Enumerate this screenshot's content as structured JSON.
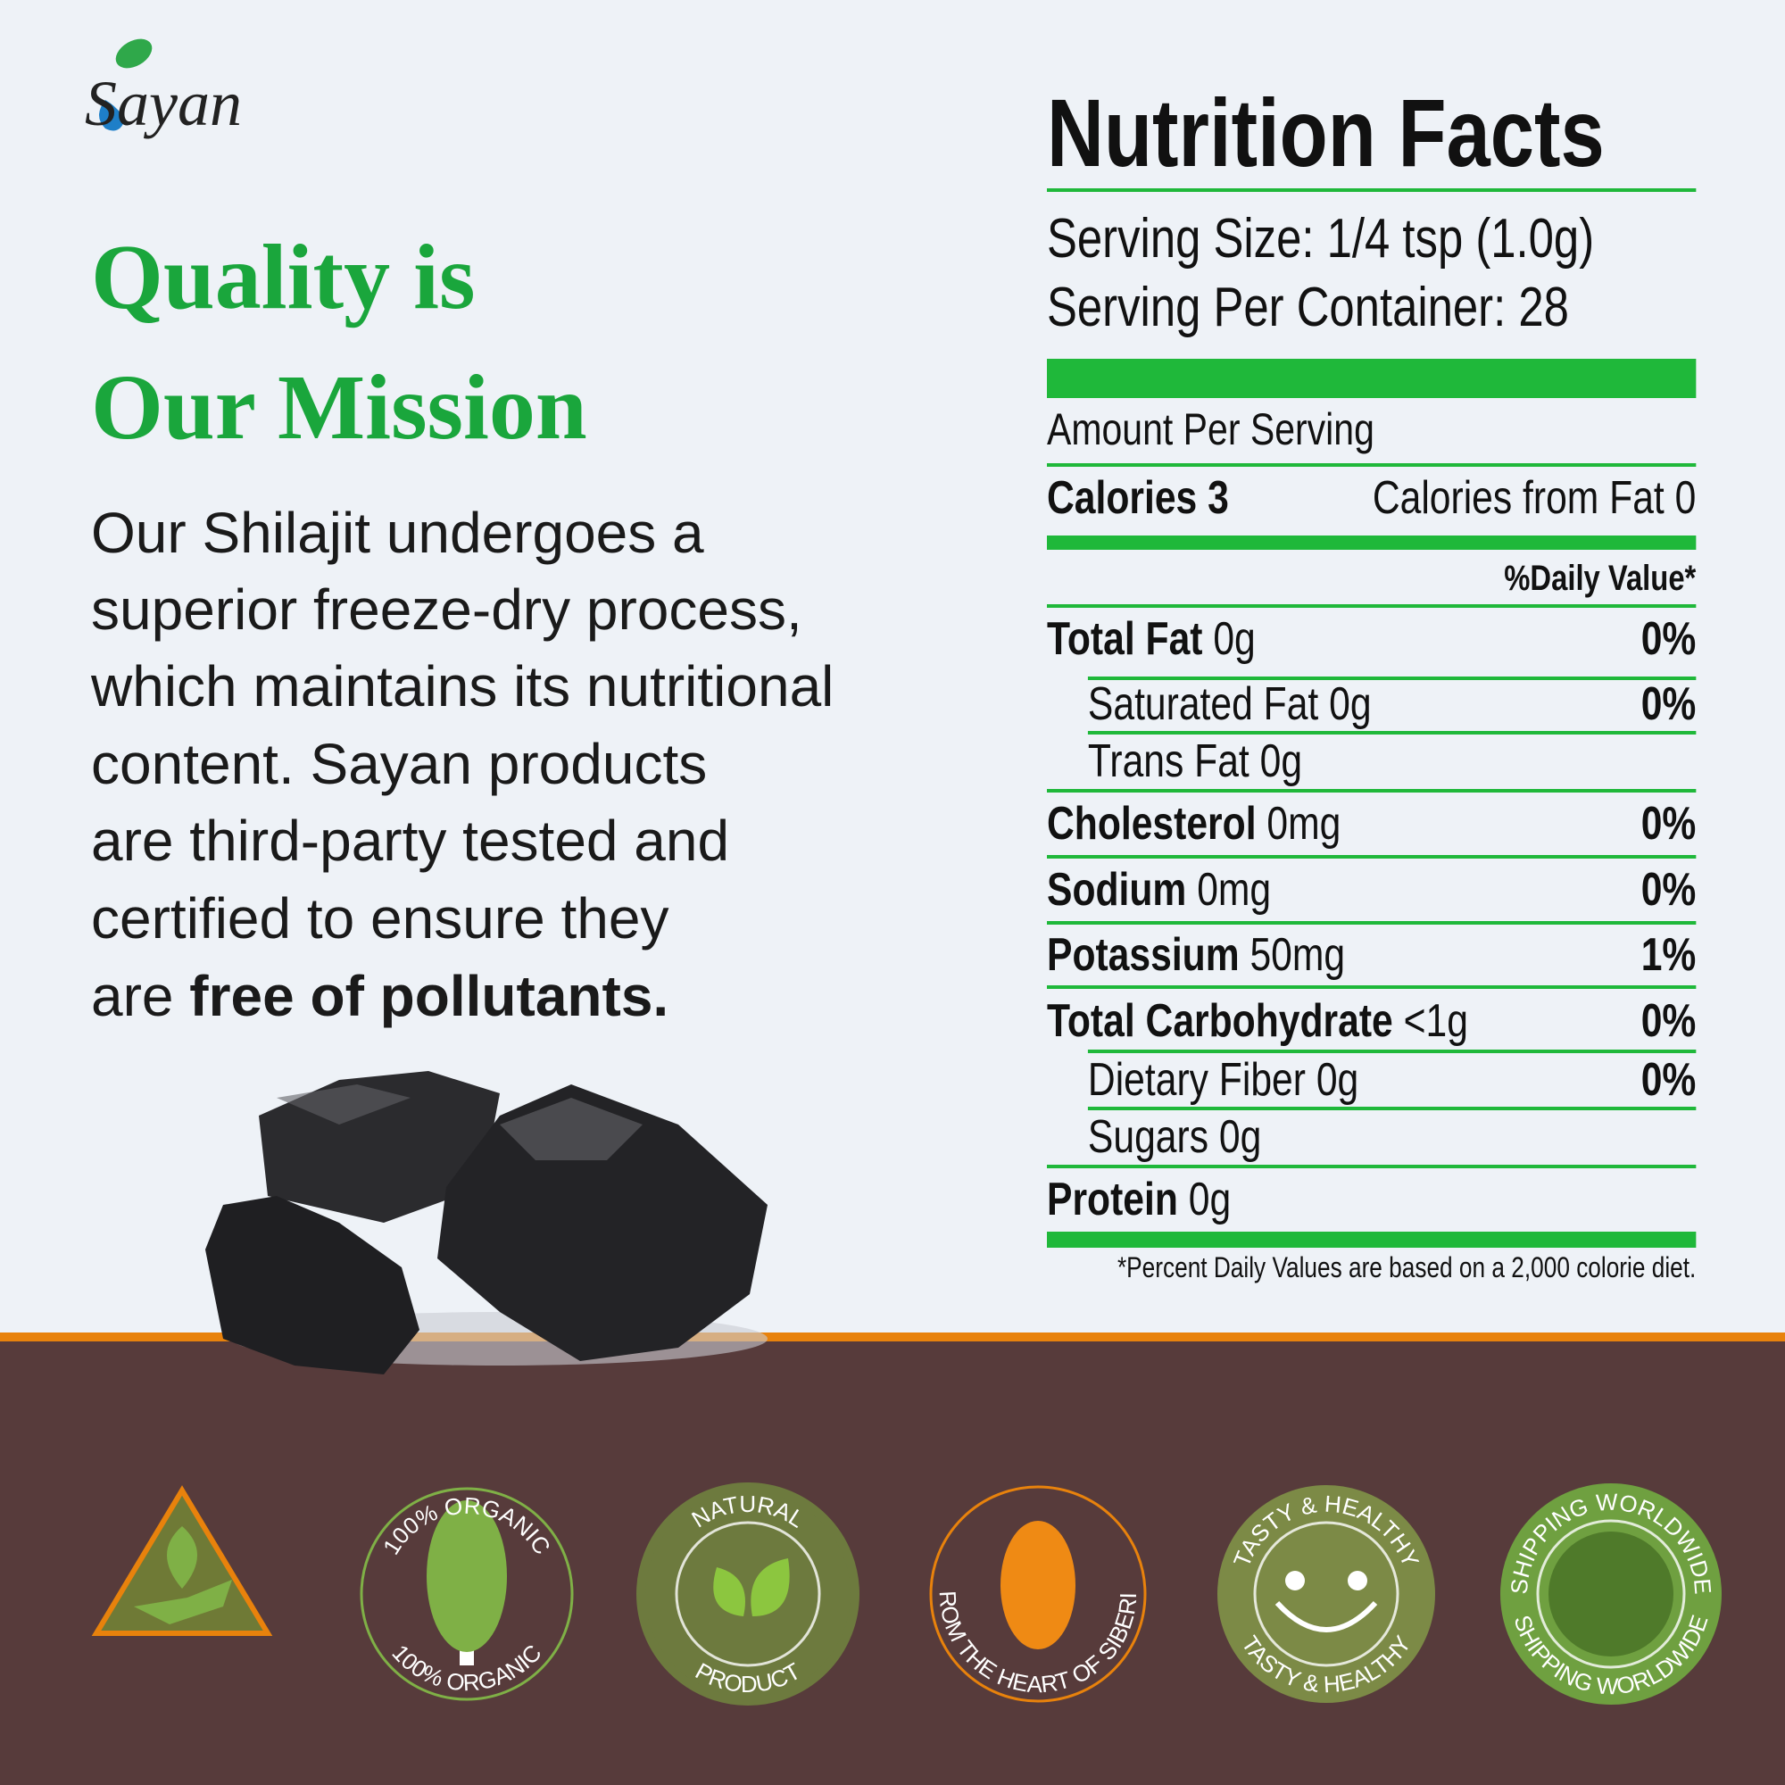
{
  "logo": "Sayan",
  "headline": [
    "Quality is",
    "Our Mission"
  ],
  "body": {
    "lines": [
      "Our Shilajit undergoes a",
      "superior freeze-dry process,",
      "which maintains its nutritional",
      "content. Sayan products",
      "are third-party tested and",
      "certified to ensure they"
    ],
    "last_line_start": "are",
    "emphasis": "free of pollutants."
  },
  "nutrition": {
    "title": "Nutrition Facts",
    "serving_size": "Serving Size: 1/4 tsp (1.0g)",
    "servings_per_container": "Serving Per Container: 28",
    "amount_per_serving": "Amount Per Serving",
    "calories": "Calories 3",
    "calories_from_fat": "Calories from Fat 0",
    "daily_value_header": "%Daily Value*",
    "rows": [
      {
        "name": "Total Fat",
        "amount": "0g",
        "dv": "0%",
        "bold": true,
        "indent": false
      },
      {
        "name": "Saturated Fat",
        "amount": "0g",
        "dv": "0%",
        "bold": false,
        "indent": true
      },
      {
        "name": "Trans Fat",
        "amount": "0g",
        "bold": false,
        "indent": true
      },
      {
        "name": "Cholesterol",
        "amount": "0mg",
        "dv": "0%",
        "bold": true,
        "indent": false
      },
      {
        "name": "Sodium",
        "amount": "0mg",
        "dv": "0%",
        "bold": true,
        "indent": false
      },
      {
        "name": "Potassium",
        "amount": "50mg",
        "dv": "1%",
        "bold": true,
        "indent": false
      },
      {
        "name": "Total Carbohydrate",
        "amount": "<1g",
        "dv": "0%",
        "bold": true,
        "indent": false
      },
      {
        "name": "Dietary Fiber",
        "amount": "0g",
        "dv": "0%",
        "bold": false,
        "indent": true
      },
      {
        "name": "Sugars",
        "amount": "0g",
        "bold": false,
        "indent": true
      },
      {
        "name": "Protein",
        "amount": "0g",
        "bold": true,
        "indent": false
      }
    ],
    "footnote": "*Percent Daily Values are based on a 2,000 colorie diet."
  },
  "badges": [
    {
      "top": "100% ORGANIC",
      "bottom": "100% ORGANIC"
    },
    {
      "top": "NATURAL",
      "bottom": "PRODUCT"
    },
    {
      "bottom": "FROM THE HEART OF SIBERIA"
    },
    {
      "top": "TASTY & HEALTHY",
      "bottom": "TASTY & HEALTHY"
    },
    {
      "top": "SHIPPING WORLDWIDE",
      "bottom": "SHIPPING WORLDWIDE"
    }
  ]
}
